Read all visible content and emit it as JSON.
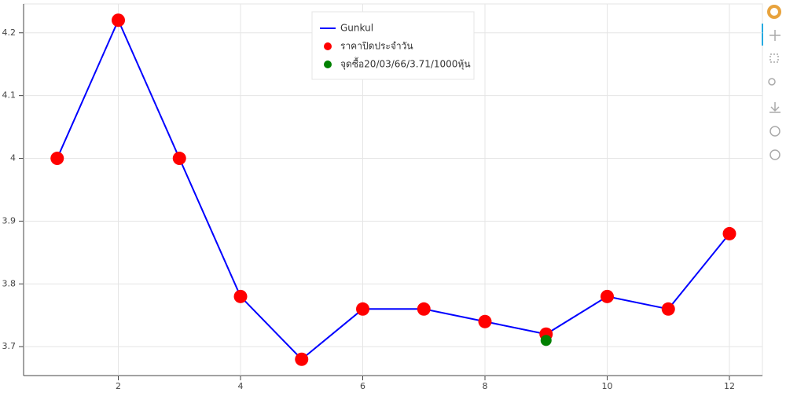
{
  "chart_data": {
    "type": "line",
    "x": [
      1,
      2,
      3,
      4,
      5,
      6,
      7,
      8,
      9,
      10,
      11,
      12
    ],
    "series": [
      {
        "name": "Gunkul",
        "type": "line",
        "color": "#0000ff",
        "values": [
          4.0,
          4.22,
          4.0,
          3.78,
          3.68,
          3.76,
          3.76,
          3.74,
          3.72,
          3.78,
          3.76,
          3.88
        ]
      },
      {
        "name": "ราคาปิดประจำวัน",
        "type": "scatter",
        "color": "#ff0000",
        "values": [
          4.0,
          4.22,
          4.0,
          3.78,
          3.68,
          3.76,
          3.76,
          3.74,
          3.72,
          3.78,
          3.76,
          3.88
        ]
      },
      {
        "name": "จุดซื้อ20/03/66/3.71/1000หุ้น",
        "type": "scatter",
        "color": "#008000",
        "x": [
          9
        ],
        "values": [
          3.71
        ]
      }
    ],
    "xlim": [
      0.45,
      12.54
    ],
    "ylim": [
      3.654,
      4.246
    ],
    "xticks": [
      2,
      4,
      6,
      8,
      10,
      12
    ],
    "yticks": [
      3.7,
      3.8,
      3.9,
      4,
      4.1,
      4.2
    ],
    "grid": true,
    "legend": "top-center"
  }
}
